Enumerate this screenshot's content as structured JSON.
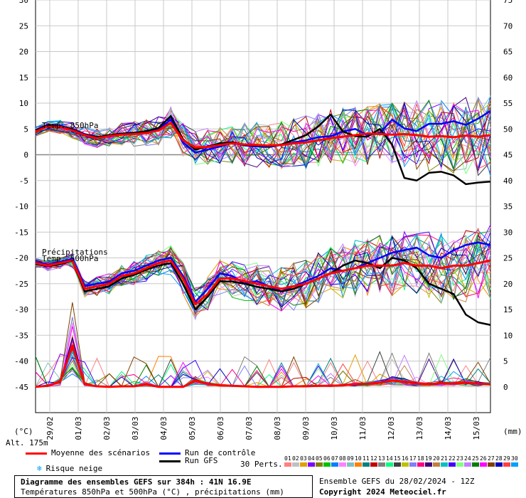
{
  "chart_data": {
    "type": "line",
    "title": "Diagramme des ensembles GEFS sur 384h : 41N 16.9E",
    "subtitle": "Températures 850hPa et 500hPa (°C) , précipitations (mm)",
    "left_axis_unit": "(°C)",
    "right_axis_unit": "(mm)",
    "left_ticks": [
      30,
      25,
      20,
      15,
      10,
      5,
      0,
      -5,
      -10,
      -15,
      -20,
      -25,
      -30,
      -35,
      -40,
      -45
    ],
    "right_ticks": [
      75,
      70,
      65,
      60,
      55,
      50,
      45,
      40,
      35,
      30,
      25,
      20,
      15,
      10,
      5,
      0
    ],
    "ylim": [
      -50,
      30
    ],
    "x_labels": [
      "29/02",
      "01/03",
      "02/03",
      "03/03",
      "04/03",
      "05/03",
      "06/03",
      "07/03",
      "08/03",
      "09/03",
      "10/03",
      "11/03",
      "12/03",
      "13/03",
      "14/03",
      "15/03"
    ],
    "annotations": [
      "Temp. 850hPa",
      "Précipitations",
      "Temp. 500hPa"
    ],
    "altitude": "Alt. 175m",
    "series": [
      {
        "name": "Moyenne des scénarios",
        "key": "mean850",
        "values": [
          4.5,
          5.5,
          5.4,
          4.7,
          3.8,
          3.2,
          3.6,
          3.9,
          4.0,
          4.2,
          4.7,
          6.2,
          2.8,
          1.4,
          1.5,
          1.9,
          2.2,
          2.0,
          1.9,
          1.8,
          1.9,
          2.2,
          2.4,
          2.8,
          3.2,
          3.5,
          3.8,
          4.1,
          4.0,
          3.9,
          4.0,
          3.8,
          3.5,
          3.6,
          3.4,
          3.7,
          3.5,
          3.8
        ]
      },
      {
        "name": "Run de contrôle",
        "key": "ctrl850",
        "values": [
          4.8,
          5.8,
          5.6,
          5.0,
          4.0,
          3.5,
          3.5,
          4.1,
          4.3,
          4.5,
          5.0,
          6.8,
          2.4,
          0.4,
          1.0,
          1.6,
          2.3,
          1.8,
          1.6,
          1.5,
          1.9,
          2.4,
          2.8,
          3.4,
          3.6,
          4.5,
          5.0,
          3.8,
          4.2,
          6.8,
          5.1,
          4.6,
          6.0,
          6.0,
          6.5,
          5.8,
          7.0,
          8.5
        ]
      },
      {
        "name": "Run GFS",
        "key": "gfs850",
        "values": [
          4.7,
          5.7,
          5.5,
          4.9,
          3.9,
          3.4,
          3.8,
          4.1,
          4.2,
          4.6,
          5.2,
          7.5,
          3.0,
          1.0,
          1.6,
          2.2,
          2.4,
          1.9,
          1.8,
          1.6,
          2.0,
          2.9,
          3.8,
          5.5,
          7.8,
          4.5,
          3.6,
          3.5,
          5.0,
          2.0,
          -4.5,
          -5.0,
          -3.5,
          -3.3,
          -4.0,
          -5.7,
          -5.4,
          -5.2
        ]
      },
      {
        "name": "Moyenne des scénarios",
        "key": "mean500",
        "values": [
          -21.0,
          -21.5,
          -21.0,
          -20.5,
          -26.0,
          -25.5,
          -25.0,
          -23.5,
          -23.0,
          -22.0,
          -21.0,
          -20.5,
          -24.0,
          -29.0,
          -27.0,
          -24.0,
          -24.0,
          -24.5,
          -25.0,
          -25.5,
          -26.0,
          -25.5,
          -25.0,
          -24.0,
          -23.0,
          -22.5,
          -22.0,
          -21.5,
          -21.5,
          -21.5,
          -21.0,
          -21.5,
          -21.5,
          -22.0,
          -21.5,
          -21.5,
          -21.0,
          -20.5
        ]
      },
      {
        "name": "Run de contrôle",
        "key": "ctrl500",
        "values": [
          -20.8,
          -21.3,
          -20.8,
          -20.2,
          -25.5,
          -25.0,
          -24.6,
          -23.0,
          -22.5,
          -21.5,
          -20.5,
          -20.0,
          -23.5,
          -28.5,
          -26.0,
          -23.0,
          -23.5,
          -25.0,
          -24.5,
          -25.5,
          -26.5,
          -25.5,
          -24.5,
          -23.5,
          -22.0,
          -22.5,
          -22.0,
          -21.0,
          -20.0,
          -19.0,
          -18.5,
          -18.0,
          -19.5,
          -20.0,
          -18.5,
          -17.5,
          -17.0,
          -17.5
        ]
      },
      {
        "name": "Run GFS",
        "key": "gfs500",
        "values": [
          -21.2,
          -21.6,
          -21.2,
          -20.6,
          -26.5,
          -26.0,
          -25.5,
          -24.0,
          -23.3,
          -22.3,
          -21.5,
          -21.0,
          -25.0,
          -30.0,
          -27.5,
          -24.5,
          -24.6,
          -25.0,
          -25.6,
          -26.0,
          -26.5,
          -26.0,
          -25.0,
          -24.0,
          -23.0,
          -21.5,
          -20.5,
          -21.0,
          -22.0,
          -20.0,
          -20.5,
          -22.0,
          -25.0,
          -26.0,
          -27.0,
          -31.0,
          -32.5,
          -33.0
        ]
      },
      {
        "name": "Moyenne des scénarios",
        "key": "precip",
        "values": [
          0,
          0.2,
          1,
          8,
          0.5,
          0.1,
          0,
          0.1,
          0.1,
          0.5,
          0,
          0,
          0,
          1.2,
          0.6,
          0.3,
          0.2,
          0.1,
          0,
          0,
          0,
          0.1,
          0.1,
          0.2,
          0.2,
          0.3,
          0.5,
          0.6,
          0.8,
          1.2,
          1.0,
          0.6,
          0.5,
          0.7,
          0.6,
          0.8,
          0.6,
          0.5
        ]
      }
    ]
  },
  "legend": {
    "mean_label": "Moyenne des scénarios",
    "control_label": "Run de contrôle",
    "gfs_label": "Run GFS",
    "snow_label": "Risque neige",
    "perts_label": "30 Perts.",
    "members": [
      "01",
      "02",
      "03",
      "04",
      "05",
      "06",
      "07",
      "08",
      "09",
      "10",
      "11",
      "12",
      "13",
      "14",
      "15",
      "16",
      "17",
      "18",
      "19",
      "20",
      "21",
      "22",
      "23",
      "24",
      "25",
      "26",
      "27",
      "28",
      "29",
      "30"
    ],
    "member_colors": [
      "#ff8080",
      "#c0c0c0",
      "#e0a000",
      "#8000ff",
      "#808000",
      "#00c000",
      "#0080ff",
      "#ff80ff",
      "#80c0c0",
      "#ff8000",
      "#008080",
      "#c00000",
      "#808080",
      "#00ff80",
      "#404040",
      "#c0c000",
      "#8080ff",
      "#ff0080",
      "#400080",
      "#c08040",
      "#00c0c0",
      "#4000ff",
      "#80ff80",
      "#c080ff",
      "#008000",
      "#ff00ff",
      "#804000",
      "#0000c0",
      "#ff4040",
      "#00a0ff"
    ],
    "colors": {
      "mean": "#ff0000",
      "control": "#0000ff",
      "gfs": "#000000",
      "snow": "#00a0ff"
    }
  },
  "footer": {
    "title": "Diagramme des ensembles GEFS sur 384h : 41N 16.9E",
    "subtitle": "Températures 850hPa et 500hPa (°C) , précipitations (mm)",
    "run_info": "Ensemble GEFS du 28/02/2024 - 12Z",
    "copyright": "Copyright 2024 Meteociel.fr"
  }
}
